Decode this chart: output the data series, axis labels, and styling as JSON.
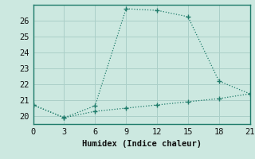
{
  "title": "",
  "xlabel": "Humidex (Indice chaleur)",
  "bg_color": "#cce8e0",
  "grid_color": "#aacfc8",
  "line_color": "#1e7b6a",
  "xlim": [
    0,
    21
  ],
  "ylim": [
    19.5,
    27.0
  ],
  "xticks": [
    0,
    3,
    6,
    9,
    12,
    15,
    18,
    21
  ],
  "yticks": [
    20,
    21,
    22,
    23,
    24,
    25,
    26
  ],
  "line1_x": [
    0,
    3,
    6,
    9,
    12,
    15,
    18,
    21
  ],
  "line1_y": [
    20.7,
    19.9,
    20.65,
    26.75,
    26.65,
    26.25,
    22.2,
    21.4
  ],
  "line2_x": [
    0,
    3,
    6,
    9,
    12,
    15,
    18,
    21
  ],
  "line2_y": [
    20.7,
    19.9,
    20.3,
    20.5,
    20.7,
    20.9,
    21.1,
    21.4
  ]
}
